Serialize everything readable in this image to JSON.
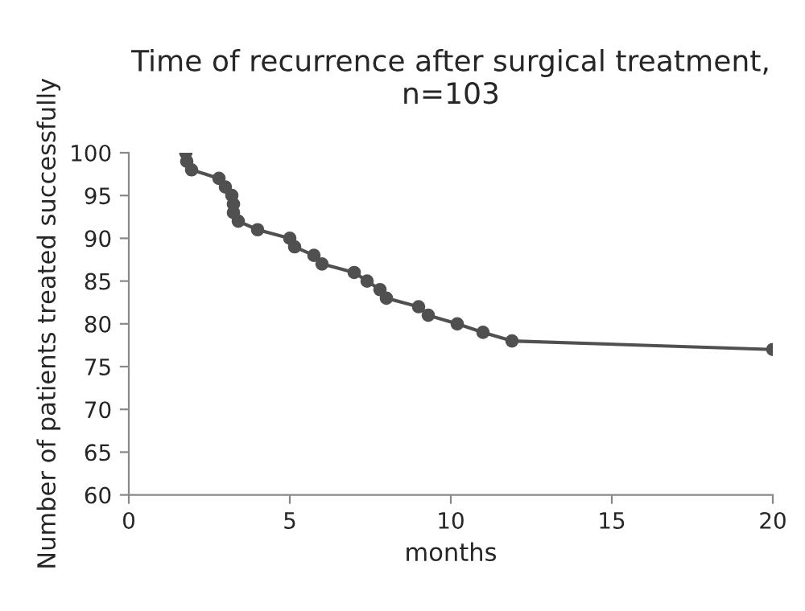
{
  "chart_data": {
    "type": "line",
    "title": "Time of recurrence after surgical treatment,\nn=103",
    "xlabel": "months",
    "ylabel": "Number of patients treated successfully",
    "series": [
      {
        "color": "#505050",
        "x": [
          1.77,
          1.8,
          1.95,
          2.8,
          3.0,
          3.2,
          3.25,
          3.25,
          3.4,
          4.0,
          5.0,
          5.15,
          5.75,
          6.0,
          7.0,
          7.4,
          7.8,
          8.0,
          9.0,
          9.3,
          10.2,
          11.0,
          11.9,
          20
        ],
        "values": [
          100,
          99,
          98,
          97,
          96,
          95,
          94,
          93,
          92,
          91,
          90,
          89,
          88,
          87,
          86,
          85,
          84,
          83,
          82,
          81,
          80,
          79,
          78,
          77
        ]
      }
    ],
    "xlim": [
      0,
      20
    ],
    "xticks": [
      0,
      5,
      10,
      15,
      20
    ],
    "ylim": [
      60,
      100
    ],
    "yticks": [
      60,
      65,
      70,
      75,
      80,
      85,
      90,
      95,
      100
    ],
    "grid": false,
    "marker": "circle",
    "line_style": "solid"
  }
}
